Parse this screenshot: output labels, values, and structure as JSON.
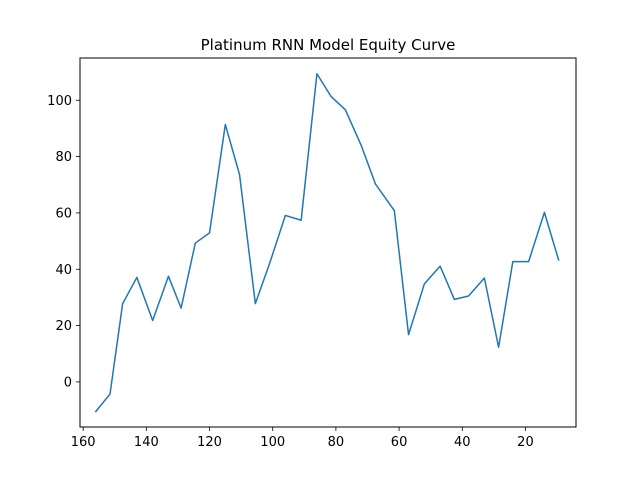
{
  "chart_data": {
    "type": "line",
    "title": "Platinum RNN Model Equity Curve",
    "xlabel": "",
    "ylabel": "",
    "x_inverted": true,
    "xlim": [
      161,
      4
    ],
    "ylim": [
      -16,
      115
    ],
    "xticks": [
      160,
      140,
      120,
      100,
      80,
      60,
      40,
      20
    ],
    "yticks": [
      0,
      20,
      40,
      60,
      80,
      100
    ],
    "grid": false,
    "series": [
      {
        "color": "#1f77b4",
        "x": [
          156,
          151.5,
          147.5,
          143,
          138,
          133,
          129,
          124.5,
          120,
          115,
          110.5,
          105.5,
          101,
          96,
          91,
          86,
          81.5,
          77,
          72,
          67.5,
          61.5,
          57,
          52,
          47,
          42.5,
          38,
          33,
          28.5,
          24,
          19,
          14,
          9.5
        ],
        "y": [
          -10.5,
          -4.3,
          27.8,
          37.1,
          21.8,
          37.5,
          26.2,
          49.3,
          52.9,
          91.4,
          73.6,
          27.8,
          42,
          59.1,
          57.4,
          109.4,
          101.3,
          96.6,
          84,
          70.3,
          60.8,
          16.8,
          34.8,
          41.1,
          29.3,
          30.5,
          36.9,
          12.3,
          42.7,
          42.7,
          60.2,
          43.3
        ]
      }
    ]
  }
}
